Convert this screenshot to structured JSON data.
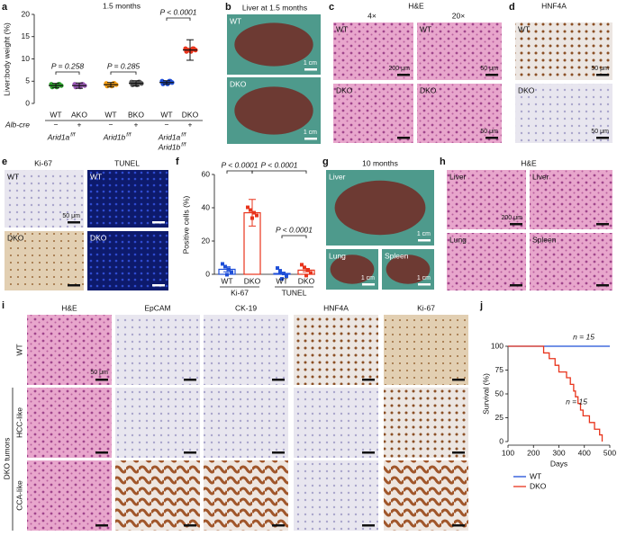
{
  "chart_data": [
    {
      "type": "dot",
      "letter": "a",
      "title": "1.5 months",
      "y_label": "Liver:body weight (%)",
      "categories": [
        "WT",
        "AKO",
        "WT",
        "BKO",
        "WT",
        "DKO"
      ],
      "values": [
        4,
        4,
        4.2,
        4.5,
        4.7,
        12
      ],
      "errors": [
        0.5,
        0.6,
        0.5,
        0.6,
        0.4,
        2.3
      ],
      "colors": [
        "#2ca02c",
        "#9b59b6",
        "#f39c12",
        "#555555",
        "#1f4fd8",
        "#e8341c"
      ],
      "ylim": [
        0,
        20
      ],
      "yticks": [
        0,
        5,
        10,
        15,
        20
      ],
      "row_label": "Alb-cre",
      "row": [
        "−",
        "+",
        "−",
        "+",
        "−",
        "+"
      ],
      "genotypes": [
        {
          "name": "Arid1a",
          "sup": "f/f"
        },
        {
          "name": "Arid1b",
          "sup": "f/f"
        },
        {
          "name": "Arid1a",
          "sup": "f/f",
          "name2": "Arid1b",
          "sup2": "f/f"
        }
      ],
      "annotations": [
        "P = 0.258",
        "P = 0.285",
        "P < 0.0001"
      ]
    },
    {
      "type": "bar",
      "letter": "f",
      "y_label": "Positive cells (%)",
      "categories": [
        "WT",
        "DKO",
        "WT",
        "DKO"
      ],
      "groups": [
        "Ki-67",
        "TUNEL"
      ],
      "values": [
        3,
        37,
        0.5,
        2.5
      ],
      "errors": [
        1.5,
        8,
        0.5,
        1
      ],
      "colors": [
        "#1f4fd8",
        "#e8341c",
        "#1f4fd8",
        "#e8341c"
      ],
      "ylim": [
        0,
        60
      ],
      "yticks": [
        0,
        20,
        40,
        60
      ],
      "annotations": [
        "P < 0.0001",
        "P < 0.0001",
        "P < 0.0001"
      ]
    },
    {
      "type": "line",
      "letter": "j",
      "y_label": "Survival (%)",
      "x_label": "Days",
      "xlim": [
        100,
        500
      ],
      "xticks": [
        100,
        200,
        300,
        400,
        500
      ],
      "ylim": [
        0,
        100
      ],
      "yticks": [
        0,
        25,
        50,
        75,
        100
      ],
      "legend": "lower left",
      "series": [
        {
          "name": "WT",
          "color": "#1f4fd8",
          "x": [
            100,
            500
          ],
          "values": [
            100,
            100
          ]
        },
        {
          "name": "DKO",
          "color": "#e8341c",
          "x": [
            100,
            240,
            240,
            262,
            262,
            285,
            285,
            300,
            300,
            330,
            330,
            345,
            345,
            358,
            358,
            365,
            365,
            375,
            375,
            385,
            385,
            395,
            395,
            420,
            420,
            440,
            440,
            460,
            460,
            470,
            470
          ],
          "values": [
            100,
            100,
            93,
            93,
            87,
            87,
            80,
            80,
            73,
            73,
            67,
            67,
            60,
            60,
            53,
            53,
            47,
            47,
            40,
            40,
            33,
            33,
            27,
            27,
            20,
            20,
            13,
            13,
            7,
            7,
            0
          ]
        }
      ],
      "annotations": [
        "n = 15",
        "n = 15"
      ]
    }
  ],
  "panels": {
    "b": {
      "letter": "b",
      "title": "Liver at 1.5 months",
      "images": [
        {
          "label": "WT",
          "scale": "1 cm"
        },
        {
          "label": "DKO",
          "scale": "1 cm"
        }
      ]
    },
    "c": {
      "letter": "c",
      "title": "H&E",
      "columns": [
        "4×",
        "20×"
      ],
      "images": [
        {
          "label": "WT",
          "scale": "200 μm"
        },
        {
          "label": "WT",
          "scale": "50 μm"
        },
        {
          "label": "DKO"
        },
        {
          "label": "DKO",
          "scale": "50 μm"
        }
      ]
    },
    "d": {
      "letter": "d",
      "title": "HNF4A",
      "images": [
        {
          "label": "WT",
          "scale": "50 μm"
        },
        {
          "label": "DKO",
          "scale": "50 μm"
        }
      ]
    },
    "e": {
      "letter": "e",
      "columns": [
        "Ki-67",
        "TUNEL"
      ],
      "images": [
        {
          "label": "WT",
          "scale": "50 μm"
        },
        {
          "label": "WT"
        },
        {
          "label": "DKO"
        },
        {
          "label": "DKO"
        }
      ]
    },
    "g": {
      "letter": "g",
      "title": "10 months",
      "images": [
        {
          "label": "Liver",
          "scale": "1 cm"
        },
        {
          "label": "Lung",
          "scale": "1 cm"
        },
        {
          "label": "Spleen",
          "scale": "1 cm"
        }
      ]
    },
    "h": {
      "letter": "h",
      "title": "H&E",
      "images": [
        {
          "label": "Liver",
          "scale": "200 μm"
        },
        {
          "label": "Liver"
        },
        {
          "label": "Lung"
        },
        {
          "label": "Spleen"
        }
      ]
    },
    "i": {
      "letter": "i",
      "columns": [
        "H&E",
        "EpCAM",
        "CK-19",
        "HNF4A",
        "Ki-67"
      ],
      "rows": [
        "WT",
        "HCC-like",
        "CCA-like"
      ],
      "group": "DKO tumors",
      "scale": "50 μm"
    }
  }
}
